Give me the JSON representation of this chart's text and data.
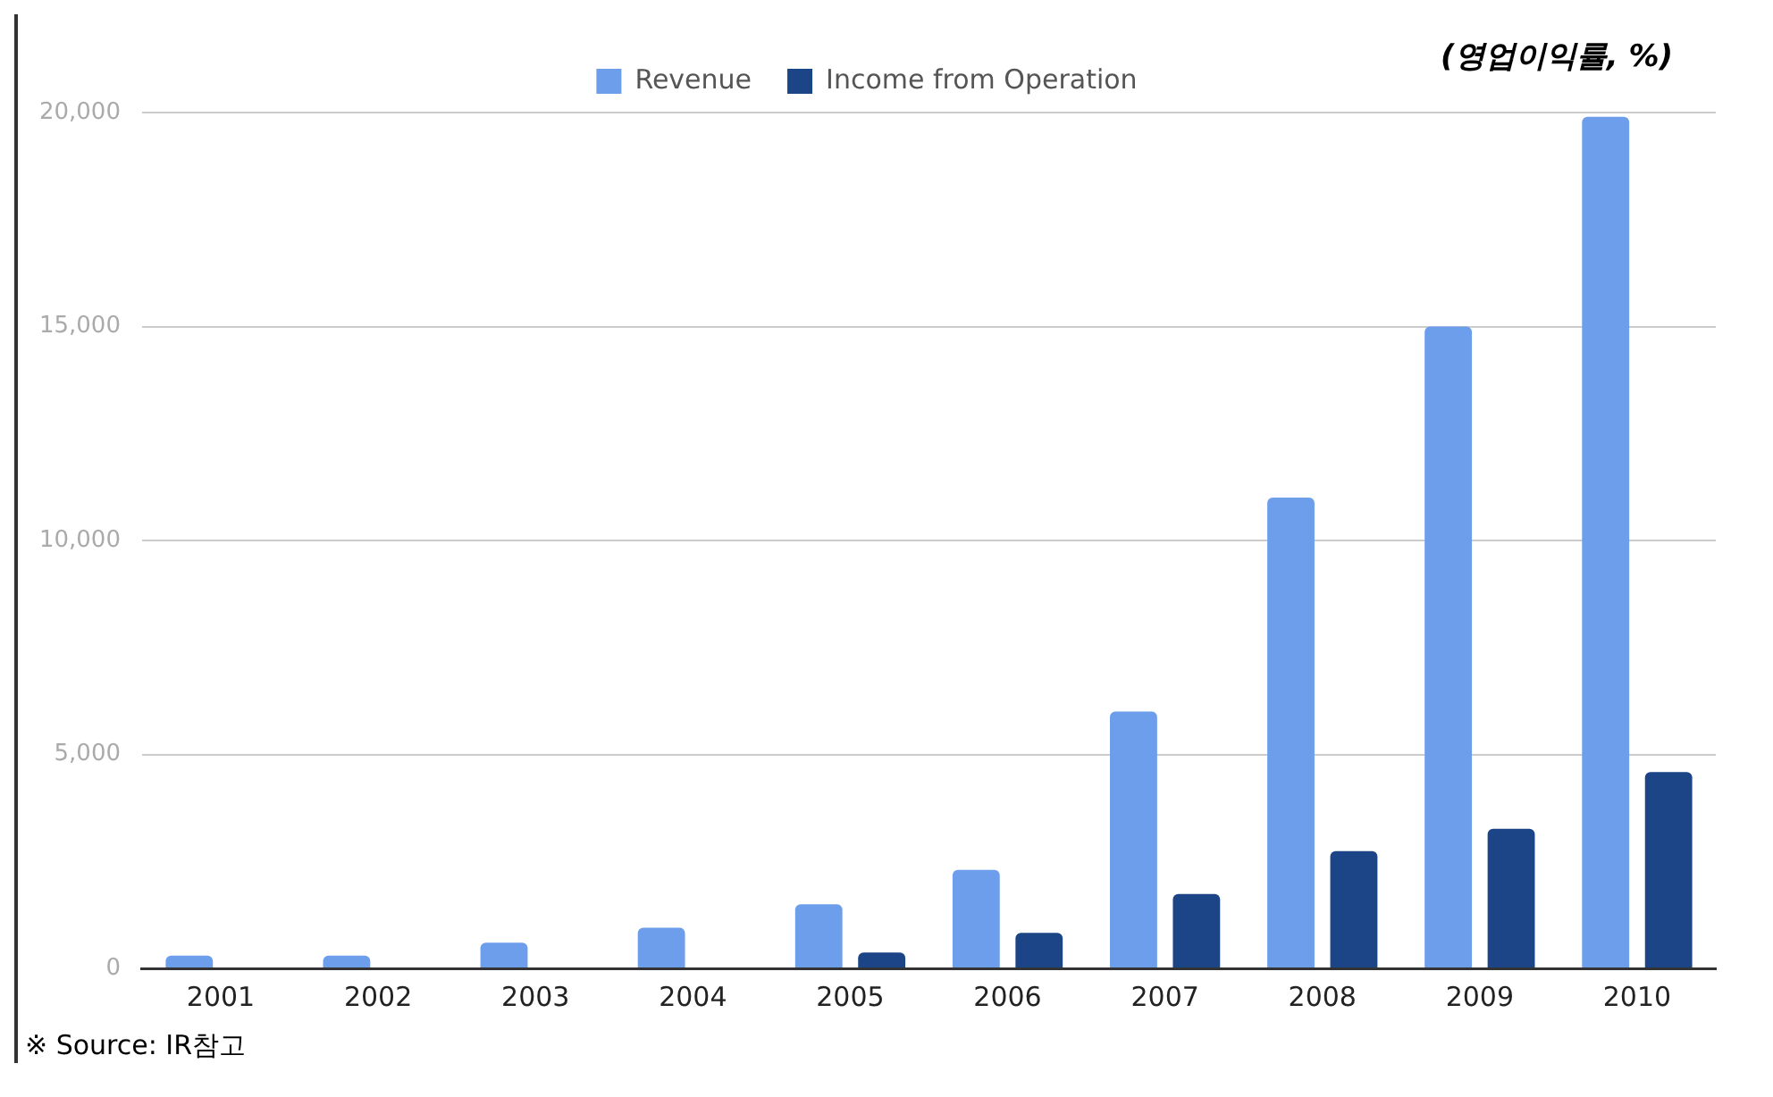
{
  "chart_data": {
    "type": "bar",
    "categories": [
      "2001",
      "2002",
      "2003",
      "2004",
      "2005",
      "2006",
      "2007",
      "2008",
      "2009",
      "2010"
    ],
    "series": [
      {
        "name": "Revenue",
        "color": "#6d9eeb",
        "values": [
          300,
          300,
          600,
          950,
          1500,
          2300,
          6000,
          11000,
          15000,
          19900
        ]
      },
      {
        "name": "Income from Operation",
        "color": "#1c4587",
        "values": [
          0,
          0,
          0,
          0,
          370,
          830,
          1740,
          2740,
          3260,
          4590
        ]
      }
    ],
    "ylim": [
      0,
      20000
    ],
    "yticks": [
      0,
      {
        "value": 5000,
        "label": "5,000"
      },
      {
        "value": 10000,
        "label": "10,000"
      },
      {
        "value": 15000,
        "label": "15,000"
      },
      {
        "value": 20000,
        "label": "20,000"
      }
    ],
    "grid": "y",
    "legend": "top",
    "annotations": [
      "(영업이익률, %)",
      "※ Source: IR참고"
    ]
  }
}
